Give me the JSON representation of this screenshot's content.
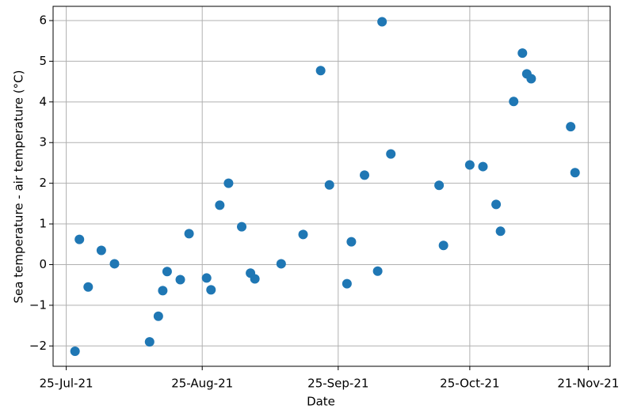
{
  "chart_data": {
    "type": "scatter",
    "x_label": "Date",
    "y_label": "Sea temperature - air temperature (°C)",
    "color": "#1f77b4",
    "grid": true,
    "x": [
      "2021-07-27",
      "2021-07-28",
      "2021-07-30",
      "2021-08-02",
      "2021-08-05",
      "2021-08-13",
      "2021-08-15",
      "2021-08-16",
      "2021-08-17",
      "2021-08-20",
      "2021-08-22",
      "2021-08-26",
      "2021-08-27",
      "2021-08-29",
      "2021-08-31",
      "2021-09-03",
      "2021-09-05",
      "2021-09-06",
      "2021-09-12",
      "2021-09-17",
      "2021-09-21",
      "2021-09-23",
      "2021-09-27",
      "2021-09-28",
      "2021-10-01",
      "2021-10-04",
      "2021-10-05",
      "2021-10-07",
      "2021-10-18",
      "2021-10-19",
      "2021-10-25",
      "2021-10-28",
      "2021-10-31",
      "2021-11-01",
      "2021-11-04",
      "2021-11-06",
      "2021-11-07",
      "2021-11-08",
      "2021-11-17",
      "2021-11-18"
    ],
    "values": [
      -2.13,
      0.62,
      -0.55,
      0.35,
      0.02,
      -1.9,
      -1.27,
      -0.64,
      -0.17,
      -0.37,
      0.76,
      -0.33,
      -0.62,
      1.46,
      2.0,
      0.93,
      -0.21,
      -0.35,
      0.02,
      0.74,
      4.77,
      1.96,
      -0.47,
      0.56,
      2.2,
      -0.16,
      5.97,
      2.72,
      1.95,
      0.47,
      2.45,
      2.41,
      1.48,
      0.82,
      4.01,
      5.2,
      4.69,
      4.57,
      3.39,
      2.26
    ],
    "xlim": [
      "2021-07-22",
      "2021-11-26"
    ],
    "xticks": [
      {
        "value": "2021-07-25",
        "label": "25-Jul-21"
      },
      {
        "value": "2021-08-25",
        "label": "25-Aug-21"
      },
      {
        "value": "2021-09-25",
        "label": "25-Sep-21"
      },
      {
        "value": "2021-10-25",
        "label": "25-Oct-21"
      },
      {
        "value": "2021-11-21",
        "label": "21-Nov-21"
      }
    ],
    "ylim": [
      -2.5,
      6.35
    ],
    "yticks": [
      {
        "value": -2,
        "label": "−2"
      },
      {
        "value": -1,
        "label": "−1"
      },
      0,
      1,
      2,
      3,
      4,
      5,
      6
    ]
  }
}
